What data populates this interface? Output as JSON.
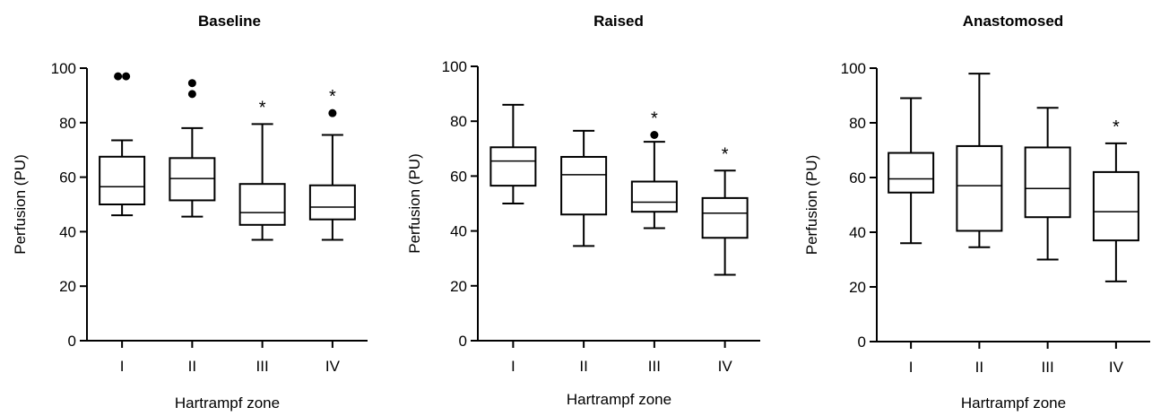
{
  "chart_data": [
    {
      "type": "boxplot",
      "title": "Baseline",
      "xlabel": "Hartrampf zone",
      "ylabel": "Perfusion (PU)",
      "ylim": [
        0,
        100
      ],
      "yticks": [
        0,
        20,
        40,
        60,
        80,
        100
      ],
      "categories": [
        "I",
        "II",
        "III",
        "IV"
      ],
      "boxes": [
        {
          "min": 46,
          "q1": 50,
          "median": 56.5,
          "q3": 67.5,
          "max": 73.5,
          "outliers": [
            97,
            97
          ],
          "significant": false
        },
        {
          "min": 45.5,
          "q1": 51.5,
          "median": 59.5,
          "q3": 67,
          "max": 78,
          "outliers": [
            94.5,
            90.5
          ],
          "significant": false
        },
        {
          "min": 37,
          "q1": 42.5,
          "median": 47,
          "q3": 57.5,
          "max": 79.5,
          "outliers": [],
          "significant": true
        },
        {
          "min": 37,
          "q1": 44.5,
          "median": 49,
          "q3": 57,
          "max": 75.5,
          "outliers": [
            83.5
          ],
          "significant": true
        }
      ],
      "significance_marker": "*"
    },
    {
      "type": "boxplot",
      "title": "Raised",
      "xlabel": "Hartrampf zone",
      "ylabel": "Perfusion (PU)",
      "ylim": [
        0,
        100
      ],
      "yticks": [
        0,
        20,
        40,
        60,
        80,
        100
      ],
      "categories": [
        "I",
        "II",
        "III",
        "IV"
      ],
      "boxes": [
        {
          "min": 50,
          "q1": 56.5,
          "median": 65.5,
          "q3": 70.5,
          "max": 86,
          "outliers": [],
          "significant": false
        },
        {
          "min": 34.5,
          "q1": 46,
          "median": 60.5,
          "q3": 67,
          "max": 76.5,
          "outliers": [],
          "significant": false
        },
        {
          "min": 41,
          "q1": 47,
          "median": 50.5,
          "q3": 58,
          "max": 72.5,
          "outliers": [
            75
          ],
          "significant": true
        },
        {
          "min": 24,
          "q1": 37.5,
          "median": 46.5,
          "q3": 52,
          "max": 62,
          "outliers": [],
          "significant": true
        }
      ],
      "significance_marker": "*"
    },
    {
      "type": "boxplot",
      "title": "Anastomosed",
      "xlabel": "Hartrampf zone",
      "ylabel": "Perfusion (PU)",
      "ylim": [
        0,
        100
      ],
      "yticks": [
        0,
        20,
        40,
        60,
        80,
        100
      ],
      "categories": [
        "I",
        "II",
        "III",
        "IV"
      ],
      "boxes": [
        {
          "min": 36,
          "q1": 54.5,
          "median": 59.5,
          "q3": 69,
          "max": 89,
          "outliers": [],
          "significant": false
        },
        {
          "min": 34.5,
          "q1": 40.5,
          "median": 57,
          "q3": 71.5,
          "max": 98,
          "outliers": [],
          "significant": false
        },
        {
          "min": 30,
          "q1": 45.5,
          "median": 56,
          "q3": 71,
          "max": 85.5,
          "outliers": [],
          "significant": false
        },
        {
          "min": 22,
          "q1": 37,
          "median": 47.5,
          "q3": 62,
          "max": 72.5,
          "outliers": [],
          "significant": true
        }
      ],
      "significance_marker": "*"
    }
  ]
}
